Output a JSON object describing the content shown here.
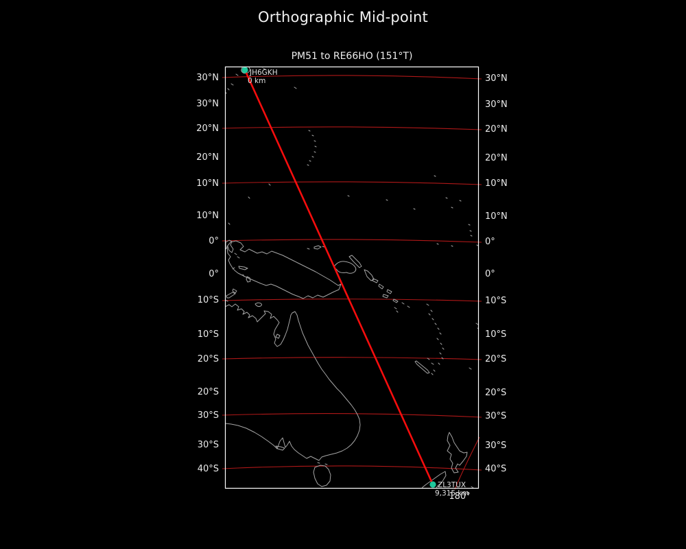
{
  "title": "Orthographic Mid-point",
  "map": {
    "subtitle": "PM51 to RE66HO (151°T)",
    "markers": [
      {
        "callsign": "JH6GKH",
        "distance": "0 km"
      },
      {
        "callsign": "ZL3TUX",
        "distance": "9,315 km"
      }
    ],
    "axis": {
      "left_labels": [
        "30°N",
        "30°N",
        "20°N",
        "20°N",
        "10°N",
        "10°N",
        "0°",
        "0°",
        "10°S",
        "10°S",
        "20°S",
        "20°S",
        "30°S",
        "30°S",
        "40°S"
      ],
      "right_labels": [
        "30°N",
        "30°N",
        "20°N",
        "20°N",
        "10°N",
        "10°N",
        "0°",
        "0°",
        "10°S",
        "10°S",
        "20°S",
        "20°S",
        "30°S",
        "30°S",
        "40°S"
      ],
      "bottom_label": "180°"
    },
    "colors": {
      "background": "#000000",
      "frame": "#ffffff",
      "gridline": "#b01818",
      "track": "#f50d0d",
      "marker": "#1fc79c",
      "coastline": "#a6a6a6"
    }
  }
}
